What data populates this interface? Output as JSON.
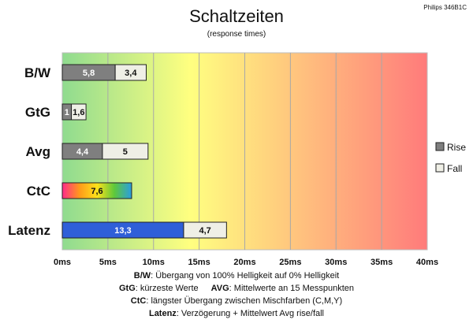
{
  "chart_data": {
    "type": "bar",
    "title": "Schaltzeiten",
    "subtitle": "(response times)",
    "model": "Philips 346B1C",
    "categories": [
      "B/W",
      "GtG",
      "Avg",
      "CtC",
      "Latenz"
    ],
    "series": [
      {
        "name": "Rise",
        "values": [
          5.8,
          1,
          4.4,
          7.6,
          13.3
        ],
        "labels": [
          "5,8",
          "1",
          "4,4",
          "7,6",
          "13,3"
        ]
      },
      {
        "name": "Fall",
        "values": [
          3.4,
          1.6,
          5,
          null,
          4.7
        ],
        "labels": [
          "3,4",
          "1,6",
          "5",
          "",
          "4,7"
        ]
      }
    ],
    "stacked": true,
    "orientation": "horizontal",
    "xlim": [
      0,
      40
    ],
    "x_ticks": [
      "0ms",
      "5ms",
      "10ms",
      "15ms",
      "20ms",
      "25ms",
      "30ms",
      "35ms",
      "40ms"
    ],
    "grid": true,
    "legend_position": "right",
    "background_gradient": [
      "#8fdb8f",
      "#ffff80",
      "#ff7b7b"
    ],
    "colors": {
      "rise": "#7f7f7f",
      "fall": "#efefe6",
      "latency": "#2f5fd8",
      "ctc_gradient": [
        "#ff2b8a",
        "#ff9a1a",
        "#ffe21a",
        "#5ec83a",
        "#2a9de0"
      ]
    },
    "notes": [
      {
        "key": "B/W",
        "text": ":  Übergang von 100% Helligkeit auf 0% Helligkeit"
      },
      {
        "key": "GtG",
        "text": ": kürzeste  Werte",
        "key2": "AVG",
        "text2": ": Mittelwerte  an 15 Messpunkten"
      },
      {
        "key": "CtC",
        "text": ": längster Übergang  zwischen Mischfarben  (C,M,Y)"
      },
      {
        "key": "Latenz",
        "text": ": Verzögerung  + Mittelwert Avg rise/fall"
      }
    ]
  }
}
